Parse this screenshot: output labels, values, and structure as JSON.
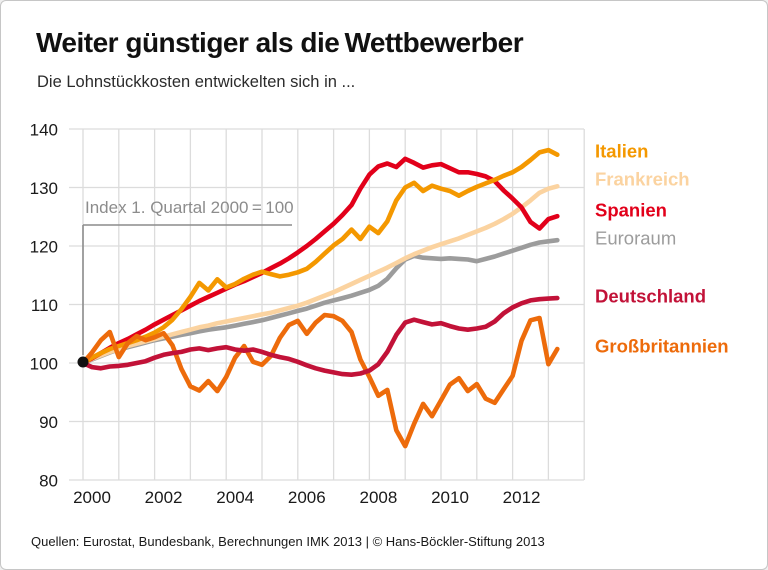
{
  "header": {
    "title": "Weiter günstiger als die Wettbewerber",
    "subtitle": "Die Lohnstückkosten entwickelten sich in ..."
  },
  "footer": {
    "source": "Quellen: Eurostat, Bundesbank, Berechnungen IMK 2013 | © Hans-Böckler-Stiftung 2013"
  },
  "chart_data": {
    "type": "line",
    "title": "Weiter günstiger als die Wettbewerber",
    "annotation": "Index 1. Quartal 2000 = 100",
    "x_start": 2000,
    "x_step": 0.25,
    "xlim": [
      2000,
      2014
    ],
    "ylim": [
      80,
      140
    ],
    "yticks": [
      80,
      90,
      100,
      110,
      120,
      130,
      140
    ],
    "xtick_years": [
      2000,
      2002,
      2004,
      2006,
      2008,
      2010,
      2012
    ],
    "grid": true,
    "legend_position": "right",
    "colors": {
      "grid": "#dcdcdc",
      "axis_text": "#1a1a1a",
      "annotation": "#8c8c8c",
      "start_dot": "#111111"
    },
    "series": [
      {
        "name": "Italien",
        "color": "#F49800",
        "bold": true,
        "values": [
          100,
          100.9,
          101.7,
          102.4,
          102.9,
          103.4,
          103.9,
          104.5,
          105.2,
          106.1,
          107.4,
          109.2,
          111.3,
          113.7,
          112.4,
          114.3,
          112.9,
          113.5,
          114.4,
          115.1,
          115.6,
          115.2,
          114.8,
          115.1,
          115.5,
          116.1,
          117.3,
          118.7,
          120.1,
          121.2,
          122.8,
          121.2,
          123.3,
          122.2,
          124.2,
          127.8,
          130.0,
          130.8,
          129.4,
          130.3,
          129.8,
          129.4,
          128.6,
          129.4,
          130.1,
          130.7,
          131.3,
          132.0,
          132.6,
          133.5,
          134.7,
          136.0,
          136.4,
          135.6
        ]
      },
      {
        "name": "Frankreich",
        "color": "#FBD3A0",
        "bold": true,
        "values": [
          100,
          100.7,
          101.3,
          101.9,
          102.4,
          102.9,
          103.3,
          103.7,
          104.1,
          104.5,
          104.9,
          105.3,
          105.7,
          106.1,
          106.4,
          106.8,
          107.1,
          107.4,
          107.7,
          108.0,
          108.3,
          108.6,
          109.0,
          109.4,
          109.8,
          110.3,
          110.9,
          111.5,
          112.1,
          112.8,
          113.5,
          114.2,
          114.9,
          115.6,
          116.3,
          117.1,
          117.9,
          118.6,
          119.2,
          119.8,
          120.3,
          120.8,
          121.3,
          121.9,
          122.5,
          123.1,
          123.8,
          124.6,
          125.5,
          126.6,
          127.8,
          129.1,
          129.8,
          130.2
        ]
      },
      {
        "name": "Spanien",
        "color": "#E2001A",
        "bold": true,
        "values": [
          100,
          100.8,
          101.7,
          102.6,
          103.4,
          104.1,
          104.9,
          105.7,
          106.6,
          107.4,
          108.2,
          109.0,
          109.8,
          110.6,
          111.3,
          112.0,
          112.7,
          113.4,
          114.0,
          114.7,
          115.4,
          116.2,
          117.0,
          117.9,
          118.9,
          120.0,
          121.2,
          122.5,
          123.8,
          125.3,
          127.0,
          129.8,
          132.2,
          133.6,
          134.1,
          133.5,
          134.9,
          134.2,
          133.4,
          133.8,
          134.0,
          133.3,
          132.6,
          132.6,
          132.3,
          131.9,
          131.1,
          129.5,
          128.1,
          126.6,
          124.1,
          123.0,
          124.6,
          125.1
        ]
      },
      {
        "name": "Euroraum",
        "color": "#9C9C9C",
        "bold": false,
        "values": [
          100,
          100.6,
          101.2,
          101.8,
          102.3,
          102.7,
          103.1,
          103.5,
          103.9,
          104.2,
          104.5,
          104.8,
          105.1,
          105.4,
          105.7,
          105.9,
          106.1,
          106.4,
          106.7,
          107.0,
          107.3,
          107.7,
          108.1,
          108.5,
          108.9,
          109.3,
          109.8,
          110.3,
          110.7,
          111.1,
          111.5,
          112.0,
          112.5,
          113.2,
          114.4,
          116.2,
          117.7,
          118.3,
          118.0,
          117.9,
          117.8,
          117.9,
          117.8,
          117.7,
          117.4,
          117.8,
          118.2,
          118.7,
          119.2,
          119.7,
          120.2,
          120.6,
          120.8,
          121.0
        ]
      },
      {
        "name": "Deutschland",
        "color": "#C21238",
        "bold": true,
        "values": [
          100,
          99.3,
          99.1,
          99.4,
          99.5,
          99.7,
          100.0,
          100.3,
          100.9,
          101.4,
          101.7,
          101.9,
          102.3,
          102.5,
          102.2,
          102.5,
          102.7,
          102.3,
          102.1,
          102.3,
          101.9,
          101.4,
          101.0,
          100.7,
          100.2,
          99.6,
          99.1,
          98.7,
          98.4,
          98.1,
          98.0,
          98.2,
          98.7,
          99.8,
          101.9,
          104.8,
          106.9,
          107.4,
          107.0,
          106.6,
          106.8,
          106.3,
          105.9,
          105.7,
          105.9,
          106.2,
          107.1,
          108.5,
          109.5,
          110.2,
          110.7,
          110.9,
          111.0,
          111.1
        ]
      },
      {
        "name": "Großbritannien",
        "color": "#ED6B0B",
        "bold": true,
        "values": [
          100,
          101.8,
          103.9,
          105.3,
          101.0,
          103.4,
          104.6,
          103.9,
          104.4,
          105.1,
          103.0,
          99.0,
          96.0,
          95.3,
          96.9,
          95.2,
          97.6,
          100.9,
          102.9,
          100.2,
          99.7,
          101.2,
          104.3,
          106.5,
          107.2,
          105.0,
          106.9,
          108.2,
          108.0,
          107.2,
          105.3,
          100.6,
          97.6,
          94.4,
          95.4,
          88.5,
          85.8,
          89.6,
          93.0,
          90.9,
          93.6,
          96.3,
          97.4,
          95.2,
          96.4,
          93.9,
          93.2,
          95.5,
          97.8,
          103.8,
          107.3,
          107.7,
          99.8,
          102.4
        ]
      }
    ]
  }
}
